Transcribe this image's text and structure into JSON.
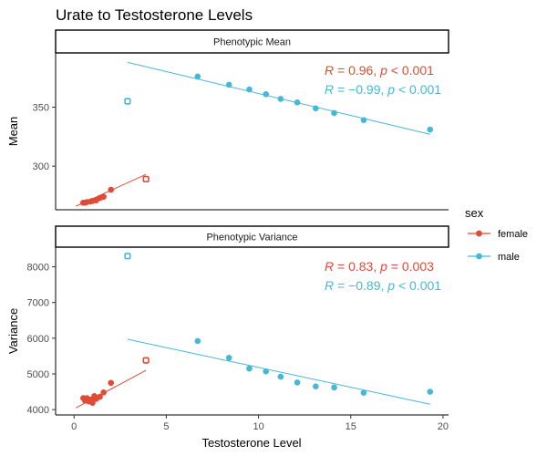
{
  "chart_data": {
    "type": "scatter",
    "title": "Urate to Testosterone Levels",
    "xlabel": "Testosterone Level",
    "xlim": [
      -1,
      20.3
    ],
    "xticks": [
      0,
      5,
      10,
      15,
      20
    ],
    "legend": {
      "title": "sex",
      "placement": "right",
      "entries": [
        {
          "label": "female",
          "color": "#E04B35"
        },
        {
          "label": "male",
          "color": "#46B8D6"
        }
      ]
    },
    "panels": [
      {
        "strip": "Phenotypic Mean",
        "ylabel": "Mean",
        "ylim": [
          263,
          396
        ],
        "yticks": [
          300,
          350
        ],
        "series": [
          {
            "name": "female",
            "color": "#E04B35",
            "points": [
              [
                0.5,
                269
              ],
              [
                0.6,
                269
              ],
              [
                0.7,
                269.5
              ],
              [
                0.9,
                270
              ],
              [
                1.0,
                270.5
              ],
              [
                1.2,
                271
              ],
              [
                1.4,
                273
              ],
              [
                1.6,
                274
              ],
              [
                2.0,
                280
              ]
            ],
            "outliers": [
              [
                3.9,
                289
              ]
            ],
            "fit": {
              "x": [
                0.1,
                3.9
              ],
              "y": [
                266,
                293
              ]
            },
            "stat": {
              "r": "0.96",
              "p": "0.001",
              "p_op": "<"
            }
          },
          {
            "name": "male",
            "color": "#46B8D6",
            "points": [
              [
                6.7,
                376
              ],
              [
                8.4,
                369
              ],
              [
                9.5,
                365
              ],
              [
                10.4,
                361
              ],
              [
                11.2,
                357
              ],
              [
                12.1,
                354
              ],
              [
                13.1,
                349
              ],
              [
                14.1,
                345
              ],
              [
                15.7,
                339
              ],
              [
                19.3,
                331
              ]
            ],
            "outliers": [
              [
                2.9,
                355
              ]
            ],
            "fit": {
              "x": [
                2.9,
                19.3
              ],
              "y": [
                388,
                327
              ]
            },
            "stat": {
              "r": "−0.99",
              "p": "0.001",
              "p_op": "<"
            }
          }
        ]
      },
      {
        "strip": "Phenotypic Variance",
        "ylabel": "Variance",
        "ylim": [
          3850,
          8550
        ],
        "yticks": [
          4000,
          5000,
          6000,
          7000,
          8000
        ],
        "series": [
          {
            "name": "female",
            "color": "#E04B35",
            "points": [
              [
                0.5,
                4320
              ],
              [
                0.6,
                4250
              ],
              [
                0.7,
                4320
              ],
              [
                0.8,
                4230
              ],
              [
                0.9,
                4280
              ],
              [
                1.0,
                4190
              ],
              [
                1.1,
                4380
              ],
              [
                1.2,
                4300
              ],
              [
                1.4,
                4360
              ],
              [
                1.6,
                4480
              ],
              [
                2.0,
                4750
              ]
            ],
            "outliers": [
              [
                3.9,
                5380
              ]
            ],
            "fit": {
              "x": [
                0.1,
                3.9
              ],
              "y": [
                4050,
                5100
              ]
            },
            "stat": {
              "r": "0.83",
              "p": "0.003",
              "p_op": "="
            }
          },
          {
            "name": "male",
            "color": "#46B8D6",
            "points": [
              [
                6.7,
                5920
              ],
              [
                8.4,
                5450
              ],
              [
                9.5,
                5150
              ],
              [
                10.4,
                5070
              ],
              [
                11.2,
                4920
              ],
              [
                12.1,
                4760
              ],
              [
                13.1,
                4650
              ],
              [
                14.1,
                4620
              ],
              [
                15.7,
                4470
              ],
              [
                19.3,
                4500
              ]
            ],
            "outliers": [
              [
                2.9,
                8300
              ]
            ],
            "fit": {
              "x": [
                2.9,
                19.3
              ],
              "y": [
                5970,
                4150
              ]
            },
            "stat": {
              "r": "−0.89",
              "p": "0.001",
              "p_op": "<"
            }
          }
        ]
      }
    ]
  }
}
